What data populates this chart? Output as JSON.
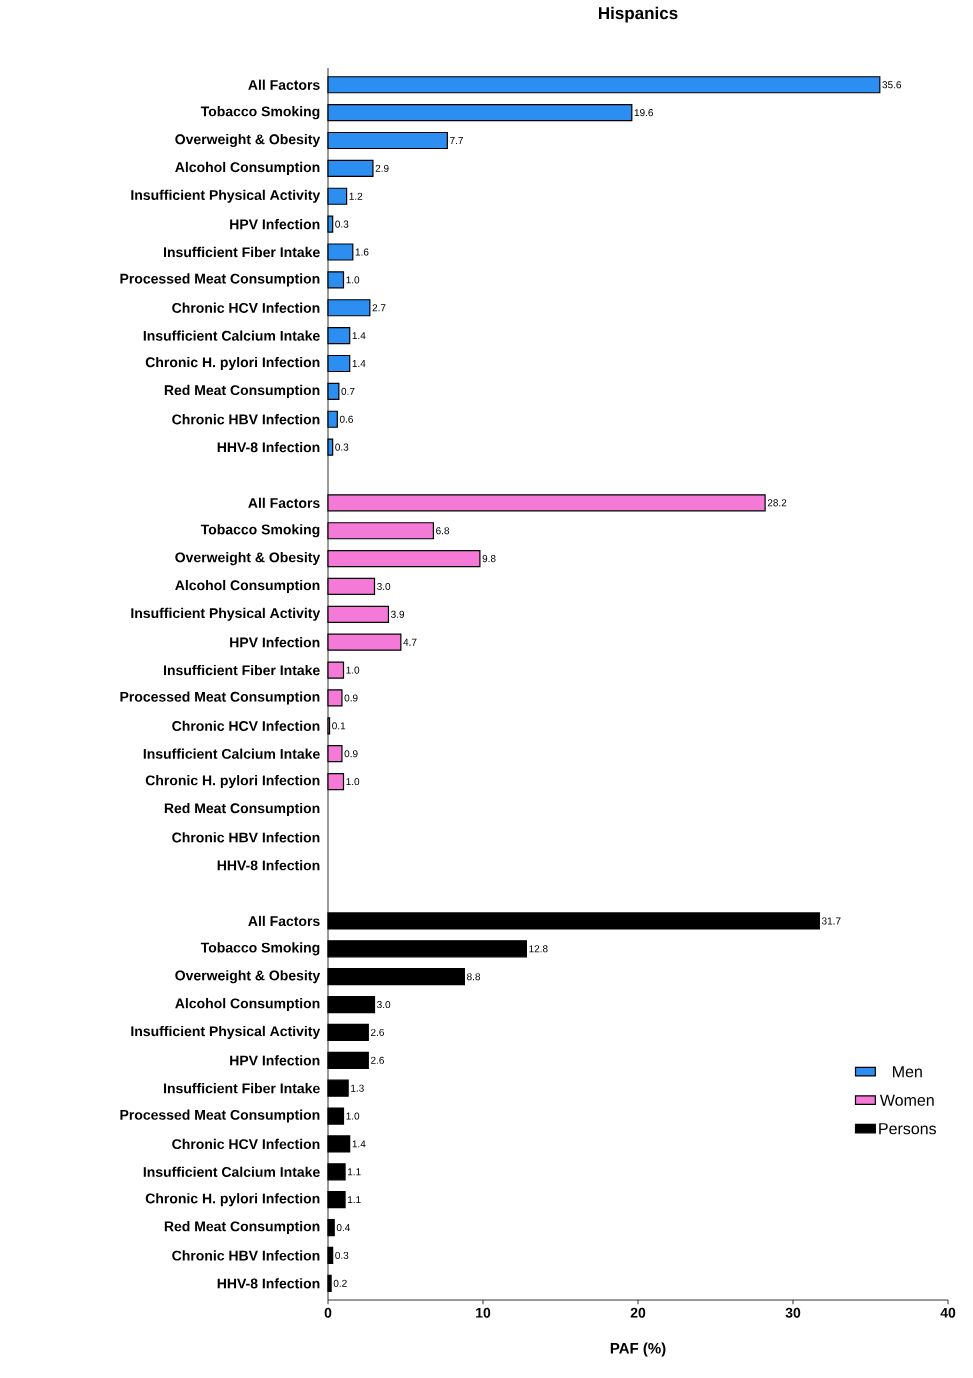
{
  "chart_data": {
    "type": "bar",
    "orientation": "horizontal",
    "title": "Hispanics",
    "xlabel": "PAF (%)",
    "categories": [
      "All Factors",
      "Tobacco Smoking",
      "Overweight & Obesity",
      "Alcohol Consumption",
      "Insufficient Physical Activity",
      "HPV Infection",
      "Insufficient Fiber Intake",
      "Processed Meat Consumption",
      "Chronic HCV Infection",
      "Insufficient Calcium Intake",
      "Chronic H. pylori Infection",
      "Red Meat Consumption",
      "Chronic HBV Infection",
      "HHV-8 Infection",
      null,
      "All Factors",
      "Tobacco Smoking",
      "Overweight & Obesity",
      "Alcohol Consumption",
      "Insufficient Physical Activity",
      "HPV Infection",
      "Insufficient Fiber Intake",
      "Processed Meat Consumption",
      "Chronic HCV Infection",
      "Insufficient Calcium Intake",
      "Chronic H. pylori Infection",
      "Red Meat Consumption",
      "Chronic HBV Infection",
      "HHV-8 Infection",
      null,
      "All Factors",
      "Tobacco Smoking",
      "Overweight & Obesity",
      "Alcohol Consumption",
      "Insufficient Physical Activity",
      "HPV Infection",
      "Insufficient Fiber Intake",
      "Processed Meat Consumption",
      "Chronic HCV Infection",
      "Insufficient Calcium Intake",
      "Chronic H. pylori Infection",
      "Red Meat Consumption",
      "Chronic HBV Infection",
      "HHV-8 Infection"
    ],
    "series": [
      {
        "name": "Men",
        "color": "#2b8ef0",
        "values": [
          35.6,
          19.6,
          7.7,
          2.9,
          1.2,
          0.3,
          1.6,
          1.0,
          2.7,
          1.4,
          1.4,
          0.7,
          0.6,
          0.3,
          null,
          null,
          null,
          null,
          null,
          null,
          null,
          null,
          null,
          null,
          null,
          null,
          null,
          null,
          null,
          null,
          null,
          null,
          null,
          null,
          null,
          null,
          null,
          null,
          null,
          null,
          null,
          null,
          null,
          null
        ],
        "value_labels": [
          "35.6",
          "19.6",
          "7.7",
          "2.9",
          "1.2",
          "0.3",
          "1.6",
          "1.0",
          "2.7",
          "1.4",
          "1.4",
          "0.7",
          "0.6",
          "0.3",
          null,
          null,
          null,
          null,
          null,
          null,
          null,
          null,
          null,
          null,
          null,
          null,
          null,
          null,
          null,
          null,
          null,
          null,
          null,
          null,
          null,
          null,
          null,
          null,
          null,
          null,
          null,
          null,
          null,
          null
        ]
      },
      {
        "name": "Women",
        "color": "#f57ad8",
        "values": [
          null,
          null,
          null,
          null,
          null,
          null,
          null,
          null,
          null,
          null,
          null,
          null,
          null,
          null,
          null,
          28.2,
          6.8,
          9.8,
          3.0,
          3.9,
          4.7,
          1.0,
          0.9,
          0.1,
          0.9,
          1.0,
          null,
          null,
          null,
          null,
          null,
          null,
          null,
          null,
          null,
          null,
          null,
          null,
          null,
          null,
          null,
          null,
          null,
          null
        ],
        "value_labels": [
          null,
          null,
          null,
          null,
          null,
          null,
          null,
          null,
          null,
          null,
          null,
          null,
          null,
          null,
          null,
          "28.2",
          "6.8",
          "9.8",
          "3.0",
          "3.9",
          "4.7",
          "1.0",
          "0.9",
          "0.1",
          "0.9",
          "1.0",
          null,
          null,
          null,
          null,
          null,
          null,
          null,
          null,
          null,
          null,
          null,
          null,
          null,
          null,
          null,
          null,
          null,
          null
        ]
      },
      {
        "name": "Persons",
        "color": "#000000",
        "values": [
          null,
          null,
          null,
          null,
          null,
          null,
          null,
          null,
          null,
          null,
          null,
          null,
          null,
          null,
          null,
          null,
          null,
          null,
          null,
          null,
          null,
          null,
          null,
          null,
          null,
          null,
          null,
          null,
          null,
          null,
          31.7,
          12.8,
          8.8,
          3.0,
          2.6,
          2.6,
          1.3,
          1.0,
          1.4,
          1.1,
          1.1,
          0.4,
          0.3,
          0.2
        ],
        "value_labels": [
          null,
          null,
          null,
          null,
          null,
          null,
          null,
          null,
          null,
          null,
          null,
          null,
          null,
          null,
          null,
          null,
          null,
          null,
          null,
          null,
          null,
          null,
          null,
          null,
          null,
          null,
          null,
          null,
          null,
          null,
          "31.7",
          "12.8",
          "8.8",
          "3.0",
          "2.6",
          "2.6",
          "1.3",
          "1.0",
          "1.4",
          "1.1",
          "1.1",
          "0.4",
          "0.3",
          "0.2"
        ]
      }
    ],
    "xlim": [
      0,
      40
    ],
    "xticks": [
      0,
      10,
      20,
      30,
      40
    ],
    "legend": "bottom right"
  }
}
